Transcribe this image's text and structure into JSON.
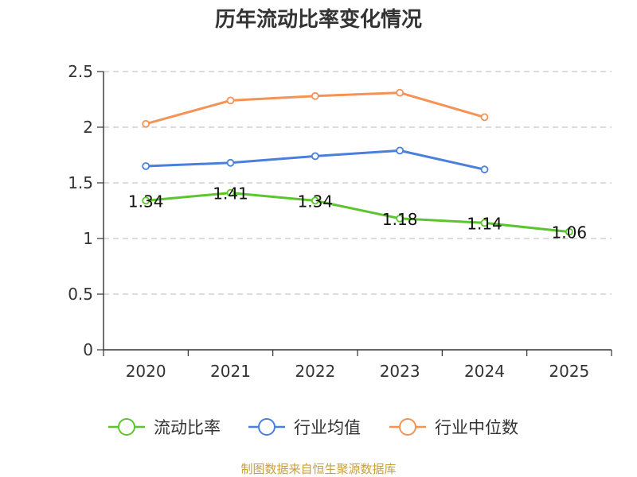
{
  "chart_data": {
    "type": "line",
    "title": "历年流动比率变化情况",
    "categories": [
      "2020",
      "2021",
      "2022",
      "2023",
      "2024",
      "2025"
    ],
    "y_ticks": [
      "0",
      "0.5",
      "1",
      "1.5",
      "2",
      "2.5"
    ],
    "ylim": [
      0,
      2.5
    ],
    "grid": true,
    "legend_position": "bottom",
    "series": [
      {
        "name": "流动比率",
        "color": "#5cc42e",
        "values": [
          1.34,
          1.41,
          1.34,
          1.18,
          1.14,
          1.06
        ],
        "labels": [
          "1.34",
          "1.41",
          "1.34",
          "1.18",
          "1.14",
          "1.06"
        ]
      },
      {
        "name": "行业均值",
        "color": "#4a7fdc",
        "values": [
          1.65,
          1.68,
          1.74,
          1.79,
          1.62,
          null
        ]
      },
      {
        "name": "行业中位数",
        "color": "#f59256",
        "values": [
          2.03,
          2.24,
          2.28,
          2.31,
          2.09,
          null
        ]
      }
    ],
    "source": "制图数据来自恒生聚源数据库"
  }
}
